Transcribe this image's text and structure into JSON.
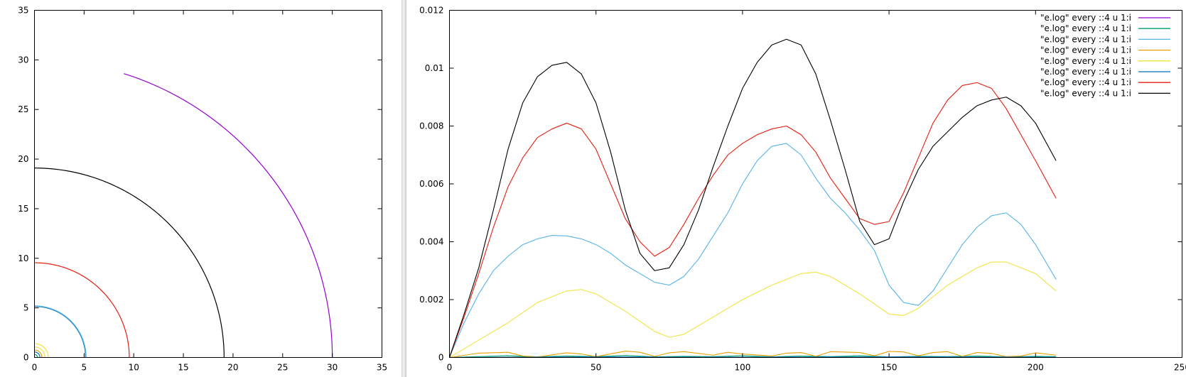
{
  "chart_data": [
    {
      "type": "line",
      "title": "",
      "xlabel": "",
      "ylabel": "",
      "xlim": [
        0,
        35
      ],
      "ylim": [
        0,
        35
      ],
      "xticks": [
        0,
        5,
        10,
        15,
        20,
        25,
        30,
        35
      ],
      "yticks": [
        0,
        5,
        10,
        15,
        20,
        25,
        30,
        35
      ],
      "grid": false,
      "legend": false,
      "series": [
        {
          "color": "#9400d3",
          "shape": "arc",
          "radius": 30.0,
          "start_x": 9.0
        },
        {
          "color": "#000000",
          "shape": "arc",
          "radius": 19.1
        },
        {
          "color": "#e51e10",
          "shape": "arc",
          "radius": 9.55
        },
        {
          "color": "#0072b2",
          "shape": "arc",
          "radius": 5.15
        },
        {
          "color": "#56b4e9",
          "shape": "arc",
          "radius": 5.2
        },
        {
          "color": "#f0e442",
          "shape": "arc",
          "radius": 1.4
        },
        {
          "color": "#f0e442",
          "shape": "arc",
          "radius": 1.05
        },
        {
          "color": "#e69f00",
          "shape": "arc",
          "radius": 0.75
        },
        {
          "color": "#0072b2",
          "shape": "arc",
          "radius": 0.55
        },
        {
          "color": "#009e73",
          "shape": "arc",
          "radius": 0.3
        }
      ]
    },
    {
      "type": "line",
      "title": "",
      "xlabel": "",
      "ylabel": "",
      "xlim": [
        0,
        250
      ],
      "ylim": [
        0,
        0.012
      ],
      "xticks": [
        0,
        50,
        100,
        150,
        200,
        250
      ],
      "yticks": [
        0,
        0.002,
        0.004,
        0.006,
        0.008,
        0.01,
        0.012
      ],
      "ytick_labels": [
        "0",
        "0.002",
        "0.004",
        "0.006",
        "0.008",
        "0.01",
        "0.012"
      ],
      "grid": false,
      "legend_position": "top-right",
      "series": [
        {
          "name": "\"e.log\" every ::4 u 1:i",
          "color": "#9400d3",
          "x": [
            0,
            207
          ],
          "y": [
            0,
            0
          ]
        },
        {
          "name": "\"e.log\" every ::4 u 1:i",
          "color": "#009e73",
          "x": [
            0,
            10,
            20,
            30,
            40,
            50,
            60,
            70,
            80,
            90,
            100,
            110,
            120,
            130,
            140,
            150,
            160,
            170,
            180,
            190,
            200,
            207
          ],
          "y": [
            0,
            3e-05,
            6e-05,
            2e-05,
            5e-05,
            3e-05,
            7e-05,
            2e-05,
            4e-05,
            3e-05,
            6e-05,
            2e-05,
            5e-05,
            3e-05,
            6e-05,
            2e-05,
            4e-05,
            3e-05,
            5e-05,
            2e-05,
            4e-05,
            3e-05
          ]
        },
        {
          "name": "\"e.log\" every ::4 u 1:i",
          "color": "#56b4e9",
          "x": [
            0,
            5,
            10,
            15,
            20,
            25,
            30,
            35,
            40,
            45,
            50,
            55,
            60,
            65,
            70,
            75,
            80,
            85,
            90,
            95,
            100,
            105,
            110,
            115,
            120,
            125,
            130,
            135,
            140,
            145,
            150,
            155,
            160,
            165,
            170,
            175,
            180,
            185,
            190,
            195,
            200,
            207
          ],
          "y": [
            0,
            0.0012,
            0.0022,
            0.003,
            0.0035,
            0.0039,
            0.0041,
            0.00422,
            0.0042,
            0.0041,
            0.0039,
            0.0036,
            0.0032,
            0.0029,
            0.0026,
            0.0025,
            0.0028,
            0.0034,
            0.0042,
            0.005,
            0.006,
            0.0068,
            0.0073,
            0.0074,
            0.007,
            0.0062,
            0.0055,
            0.005,
            0.0044,
            0.0037,
            0.0025,
            0.0019,
            0.0018,
            0.0023,
            0.0031,
            0.0039,
            0.0045,
            0.0049,
            0.005,
            0.0046,
            0.0039,
            0.0027
          ]
        },
        {
          "name": "\"e.log\" every ::4 u 1:i",
          "color": "#e69f00",
          "x": [
            0,
            10,
            20,
            25,
            30,
            40,
            45,
            50,
            60,
            65,
            70,
            75,
            80,
            90,
            95,
            100,
            110,
            115,
            120,
            125,
            130,
            140,
            145,
            150,
            155,
            160,
            165,
            170,
            175,
            180,
            185,
            190,
            195,
            200,
            207
          ],
          "y": [
            0,
            0.00015,
            0.00018,
            5e-05,
            2e-05,
            0.00016,
            0.00012,
            3e-05,
            0.00022,
            0.00018,
            4e-05,
            0.00016,
            0.0002,
            8e-05,
            0.00018,
            0.00012,
            5e-05,
            0.00015,
            0.00017,
            4e-05,
            0.0002,
            0.00017,
            6e-05,
            0.00021,
            0.00019,
            6e-05,
            0.00017,
            0.0002,
            4e-05,
            0.00017,
            0.00014,
            3e-05,
            5e-05,
            0.00016,
            8e-05
          ]
        },
        {
          "name": "\"e.log\" every ::4 u 1:i",
          "color": "#f0e442",
          "x": [
            0,
            10,
            20,
            30,
            40,
            45,
            50,
            60,
            70,
            75,
            80,
            90,
            100,
            110,
            120,
            125,
            130,
            140,
            150,
            155,
            160,
            170,
            180,
            185,
            190,
            200,
            207
          ],
          "y": [
            0,
            0.0006,
            0.0012,
            0.0019,
            0.0023,
            0.00235,
            0.0022,
            0.0016,
            0.0009,
            0.0007,
            0.0008,
            0.0014,
            0.002,
            0.0025,
            0.0029,
            0.00295,
            0.0028,
            0.0022,
            0.0015,
            0.00145,
            0.0017,
            0.0025,
            0.0031,
            0.0033,
            0.0033,
            0.0029,
            0.0023
          ]
        },
        {
          "name": "\"e.log\" every ::4 u 1:i",
          "color": "#0072b2",
          "x": [
            0,
            50,
            100,
            150,
            207
          ],
          "y": [
            0,
            2e-05,
            1e-05,
            2e-05,
            1e-05
          ]
        },
        {
          "name": "\"e.log\" every ::4 u 1:i",
          "color": "#e51e10",
          "x": [
            0,
            5,
            10,
            15,
            20,
            25,
            30,
            35,
            40,
            45,
            50,
            55,
            60,
            65,
            70,
            75,
            80,
            85,
            90,
            95,
            100,
            105,
            110,
            115,
            120,
            125,
            130,
            135,
            140,
            145,
            150,
            155,
            160,
            165,
            170,
            175,
            180,
            185,
            190,
            195,
            200,
            207
          ],
          "y": [
            0,
            0.0014,
            0.0029,
            0.0045,
            0.0059,
            0.0069,
            0.0076,
            0.0079,
            0.0081,
            0.0079,
            0.0072,
            0.006,
            0.0048,
            0.004,
            0.0035,
            0.0038,
            0.0046,
            0.0055,
            0.0063,
            0.007,
            0.0074,
            0.0077,
            0.0079,
            0.008,
            0.0077,
            0.0071,
            0.0062,
            0.0055,
            0.0048,
            0.0046,
            0.0047,
            0.0057,
            0.0069,
            0.0081,
            0.0089,
            0.0094,
            0.0095,
            0.0093,
            0.0086,
            0.0077,
            0.0068,
            0.0055
          ]
        },
        {
          "name": "\"e.log\" every ::4 u 1:i",
          "color": "#000000",
          "x": [
            0,
            5,
            10,
            15,
            20,
            25,
            30,
            35,
            40,
            45,
            50,
            55,
            60,
            65,
            70,
            75,
            80,
            85,
            90,
            95,
            100,
            105,
            110,
            115,
            120,
            125,
            130,
            135,
            140,
            145,
            150,
            155,
            160,
            165,
            170,
            175,
            180,
            185,
            190,
            195,
            200,
            207
          ],
          "y": [
            0,
            0.0015,
            0.0031,
            0.0051,
            0.0072,
            0.0088,
            0.0097,
            0.0101,
            0.0102,
            0.0098,
            0.0088,
            0.0071,
            0.0051,
            0.0036,
            0.003,
            0.0031,
            0.0039,
            0.0051,
            0.0066,
            0.008,
            0.0093,
            0.0102,
            0.0108,
            0.011,
            0.0108,
            0.0098,
            0.0082,
            0.0065,
            0.0047,
            0.0039,
            0.0041,
            0.0054,
            0.0065,
            0.0073,
            0.0078,
            0.0083,
            0.0087,
            0.0089,
            0.009,
            0.0087,
            0.0081,
            0.0068
          ]
        }
      ]
    }
  ]
}
